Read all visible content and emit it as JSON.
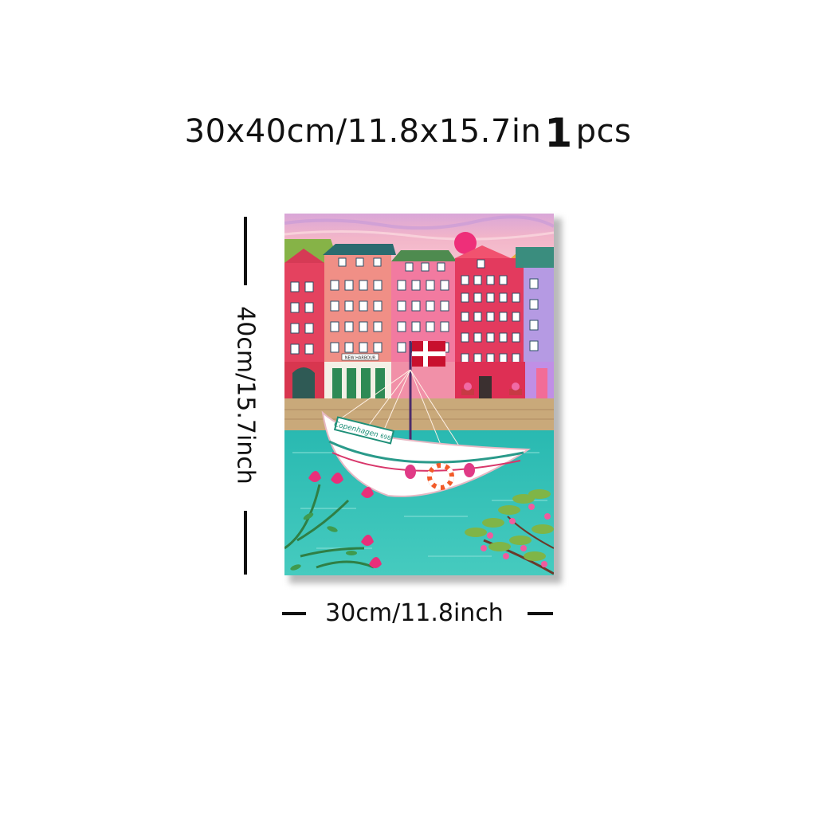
{
  "header": {
    "size_text": "30x40cm/11.8x15.7in",
    "quantity_number": "1",
    "quantity_unit": "pcs"
  },
  "dimensions": {
    "height_label": "40cm/15.7inch",
    "width_label": "30cm/11.8inch"
  },
  "painting": {
    "shop_sign": "NEW HARBOUR",
    "boat_name": "Copenhagen",
    "boat_number": "698",
    "colors": {
      "sky": "#e9a6c6",
      "water": "#35c2b8",
      "quay": "#c9a97a",
      "boat_hull": "#ffffff",
      "flag_red": "#c8102e",
      "sun": "#ee2f79"
    }
  },
  "icons": {
    "canvas": "painting-canvas-image"
  }
}
